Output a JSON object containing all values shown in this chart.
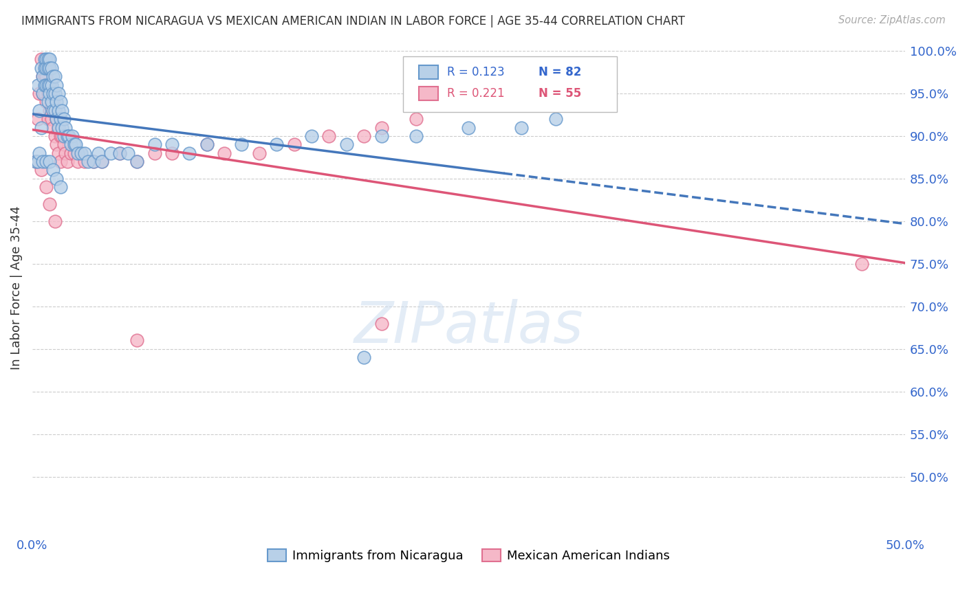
{
  "title": "IMMIGRANTS FROM NICARAGUA VS MEXICAN AMERICAN INDIAN IN LABOR FORCE | AGE 35-44 CORRELATION CHART",
  "source": "Source: ZipAtlas.com",
  "ylabel": "In Labor Force | Age 35-44",
  "xlim": [
    0.0,
    0.5
  ],
  "ylim": [
    0.435,
    1.008
  ],
  "xtick_positions": [
    0.0,
    0.1,
    0.2,
    0.3,
    0.4,
    0.5
  ],
  "xticklabels": [
    "0.0%",
    "",
    "",
    "",
    "",
    "50.0%"
  ],
  "ytick_positions": [
    0.5,
    0.55,
    0.6,
    0.65,
    0.7,
    0.75,
    0.8,
    0.85,
    0.9,
    0.95,
    1.0
  ],
  "ytick_labels_right": [
    "50.0%",
    "55.0%",
    "60.0%",
    "65.0%",
    "70.0%",
    "75.0%",
    "80.0%",
    "85.0%",
    "90.0%",
    "95.0%",
    "100.0%"
  ],
  "series1_label": "Immigrants from Nicaragua",
  "series1_R": "0.123",
  "series1_N": "82",
  "series1_color": "#b8d0e8",
  "series1_edge": "#6699cc",
  "series2_label": "Mexican American Indians",
  "series2_R": "0.221",
  "series2_N": "55",
  "series2_color": "#f5b8c8",
  "series2_edge": "#e07090",
  "trend1_color": "#4477bb",
  "trend2_color": "#dd5577",
  "watermark": "ZIPatlas",
  "blue_x": [
    0.002,
    0.003,
    0.004,
    0.005,
    0.005,
    0.006,
    0.006,
    0.007,
    0.007,
    0.007,
    0.008,
    0.008,
    0.008,
    0.009,
    0.009,
    0.009,
    0.009,
    0.01,
    0.01,
    0.01,
    0.01,
    0.011,
    0.011,
    0.011,
    0.012,
    0.012,
    0.012,
    0.013,
    0.013,
    0.013,
    0.014,
    0.014,
    0.014,
    0.015,
    0.015,
    0.015,
    0.016,
    0.016,
    0.017,
    0.017,
    0.018,
    0.018,
    0.019,
    0.02,
    0.021,
    0.022,
    0.023,
    0.024,
    0.025,
    0.026,
    0.028,
    0.03,
    0.032,
    0.035,
    0.038,
    0.04,
    0.045,
    0.05,
    0.055,
    0.06,
    0.07,
    0.08,
    0.09,
    0.1,
    0.12,
    0.14,
    0.16,
    0.18,
    0.2,
    0.22,
    0.25,
    0.28,
    0.3,
    0.003,
    0.004,
    0.006,
    0.008,
    0.01,
    0.012,
    0.014,
    0.016,
    0.19
  ],
  "blue_y": [
    0.87,
    0.96,
    0.93,
    0.98,
    0.91,
    0.97,
    0.95,
    0.99,
    0.98,
    0.96,
    0.99,
    0.98,
    0.96,
    0.99,
    0.98,
    0.96,
    0.94,
    0.99,
    0.98,
    0.96,
    0.95,
    0.98,
    0.96,
    0.94,
    0.97,
    0.95,
    0.93,
    0.97,
    0.95,
    0.93,
    0.96,
    0.94,
    0.92,
    0.95,
    0.93,
    0.91,
    0.94,
    0.92,
    0.93,
    0.91,
    0.92,
    0.9,
    0.91,
    0.9,
    0.9,
    0.89,
    0.9,
    0.89,
    0.89,
    0.88,
    0.88,
    0.88,
    0.87,
    0.87,
    0.88,
    0.87,
    0.88,
    0.88,
    0.88,
    0.87,
    0.89,
    0.89,
    0.88,
    0.89,
    0.89,
    0.89,
    0.9,
    0.89,
    0.9,
    0.9,
    0.91,
    0.91,
    0.92,
    0.87,
    0.88,
    0.87,
    0.87,
    0.87,
    0.86,
    0.85,
    0.84,
    0.64
  ],
  "pink_x": [
    0.002,
    0.003,
    0.004,
    0.005,
    0.006,
    0.006,
    0.007,
    0.007,
    0.008,
    0.008,
    0.009,
    0.009,
    0.01,
    0.01,
    0.011,
    0.011,
    0.012,
    0.012,
    0.013,
    0.013,
    0.014,
    0.014,
    0.015,
    0.015,
    0.016,
    0.016,
    0.017,
    0.018,
    0.019,
    0.02,
    0.022,
    0.024,
    0.026,
    0.03,
    0.035,
    0.04,
    0.05,
    0.06,
    0.07,
    0.08,
    0.1,
    0.11,
    0.13,
    0.15,
    0.17,
    0.19,
    0.2,
    0.22,
    0.005,
    0.008,
    0.01,
    0.013,
    0.475,
    0.2,
    0.06
  ],
  "pink_y": [
    0.87,
    0.92,
    0.95,
    0.99,
    0.97,
    0.95,
    0.97,
    0.95,
    0.97,
    0.94,
    0.95,
    0.92,
    0.96,
    0.93,
    0.95,
    0.92,
    0.94,
    0.91,
    0.93,
    0.9,
    0.92,
    0.89,
    0.91,
    0.88,
    0.9,
    0.87,
    0.9,
    0.89,
    0.88,
    0.87,
    0.88,
    0.88,
    0.87,
    0.87,
    0.87,
    0.87,
    0.88,
    0.87,
    0.88,
    0.88,
    0.89,
    0.88,
    0.88,
    0.89,
    0.9,
    0.9,
    0.91,
    0.92,
    0.86,
    0.84,
    0.82,
    0.8,
    0.75,
    0.68,
    0.66
  ]
}
